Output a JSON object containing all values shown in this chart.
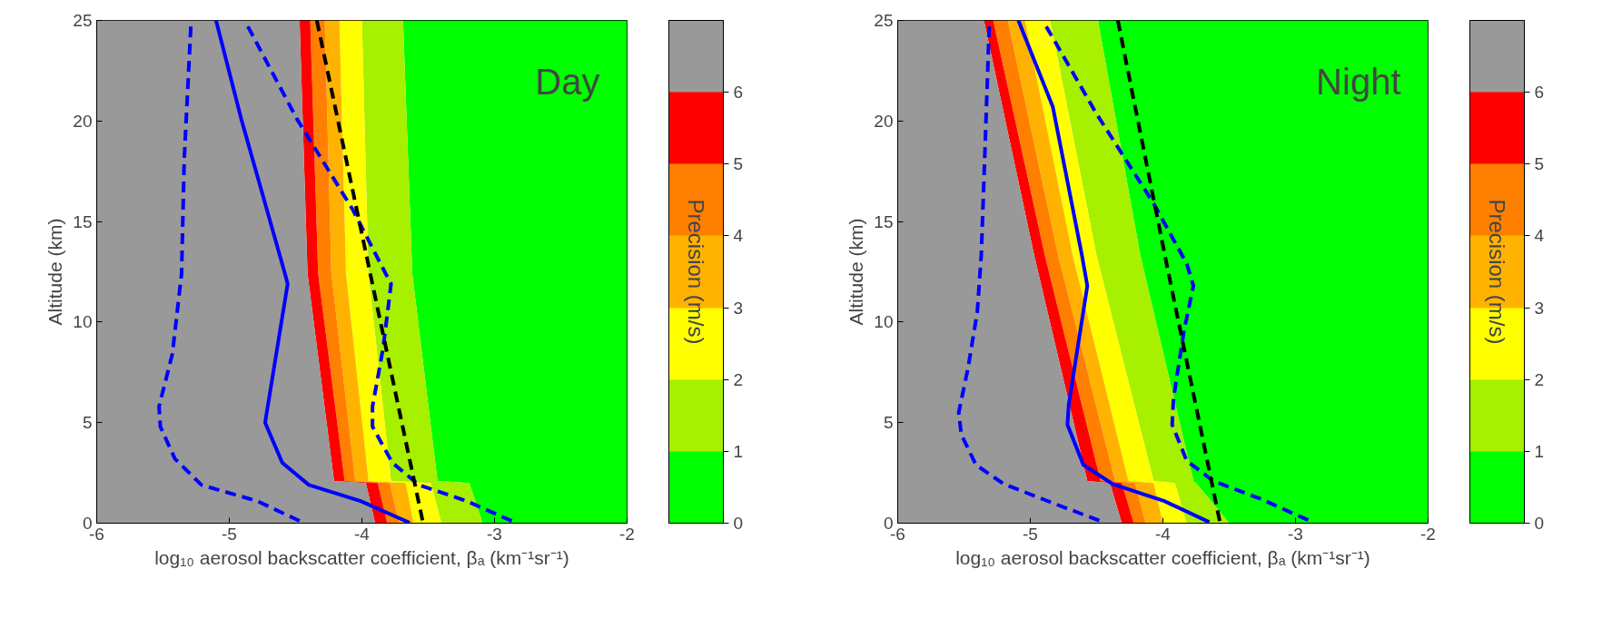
{
  "chart_data": [
    {
      "type": "line",
      "xlabel": "log₁₀ aerosol backscatter coefficient, βₐ (km⁻¹sr⁻¹)",
      "ylabel": "Altitude (km)",
      "annotations": [
        "Day"
      ],
      "clabel": "Precision (m/s)",
      "clim": [
        0,
        7
      ],
      "cticks": [
        0,
        1,
        2,
        3,
        4,
        5,
        6
      ],
      "xlim": [
        -6,
        -2
      ],
      "ylim": [
        0,
        25
      ],
      "xticks": [
        -6,
        -5,
        -4,
        -3,
        -2
      ],
      "yticks": [
        0,
        5,
        10,
        15,
        20,
        25
      ],
      "grid": false,
      "series": [
        {
          "type": "area",
          "color": "#00ff00",
          "x": [
            -3.69,
            -3.62,
            -3.43,
            -3.19,
            -3.09,
            -2,
            -2
          ],
          "values": [
            25,
            12.4,
            2.1,
            2.0,
            0,
            0,
            25
          ]
        },
        {
          "type": "area",
          "color": "#a6f000",
          "x": [
            -4.0,
            -3.95,
            -3.78,
            -3.48,
            -3.4,
            -3.09,
            -3.19,
            -3.43,
            -3.62,
            -3.69
          ],
          "values": [
            25,
            12.4,
            2.1,
            2.0,
            0,
            0,
            2.0,
            2.1,
            12.4,
            25
          ]
        },
        {
          "type": "area",
          "color": "#ffff00",
          "x": [
            -4.17,
            -4.12,
            -3.95,
            -3.67,
            -3.61,
            -3.4,
            -3.48,
            -3.78,
            -3.95,
            -4.0
          ],
          "values": [
            25,
            12.4,
            2.1,
            2.0,
            0,
            0,
            2.0,
            2.1,
            12.4,
            25
          ]
        },
        {
          "type": "area",
          "color": "#ffb300",
          "x": [
            -4.28,
            -4.23,
            -4.05,
            -3.79,
            -3.72,
            -3.61,
            -3.67,
            -3.95,
            -4.12,
            -4.17
          ],
          "values": [
            25,
            12.4,
            2.1,
            2.0,
            0,
            0,
            2.0,
            2.1,
            12.4,
            25
          ]
        },
        {
          "type": "area",
          "color": "#ff8000",
          "x": [
            -4.39,
            -4.33,
            -4.13,
            -3.88,
            -3.81,
            -3.72,
            -3.79,
            -4.05,
            -4.23,
            -4.28
          ],
          "values": [
            25,
            12.4,
            2.1,
            2.0,
            0,
            0,
            2.0,
            2.1,
            12.4,
            25
          ]
        },
        {
          "type": "area",
          "color": "#ff0000",
          "x": [
            -4.47,
            -4.41,
            -4.21,
            -3.97,
            -3.9,
            -3.81,
            -3.88,
            -4.13,
            -4.33,
            -4.39
          ],
          "values": [
            25,
            12.4,
            2.1,
            2.0,
            0,
            0,
            2.0,
            2.1,
            12.4,
            25
          ]
        },
        {
          "type": "area",
          "color": "#999999",
          "x": [
            -6,
            -4.47,
            -4.41,
            -4.21,
            -3.97,
            -3.9,
            -6
          ],
          "values": [
            25,
            25,
            12.4,
            2.1,
            2.0,
            0,
            0
          ]
        },
        {
          "color": "#0000ff",
          "line_style": "dashed",
          "x": [
            -5.29,
            -5.34,
            -5.36,
            -5.43,
            -5.53,
            -5.52,
            -5.41,
            -5.21,
            -4.79,
            -4.45
          ],
          "values": [
            24.7,
            18.1,
            12.4,
            8.4,
            5.8,
            4.8,
            3.2,
            1.9,
            1.1,
            0.05
          ]
        },
        {
          "color": "#0000ff",
          "line_style": "solid",
          "x": [
            -5.1,
            -4.91,
            -4.58,
            -4.56,
            -4.73,
            -4.6,
            -4.4,
            -4.01,
            -3.64
          ],
          "values": [
            25,
            20.1,
            12.4,
            11.9,
            5.0,
            3.0,
            1.9,
            1.1,
            0.02
          ]
        },
        {
          "color": "#0000ff",
          "line_style": "dashed",
          "x": [
            -4.86,
            -4.49,
            -4.07,
            -3.82,
            -3.78,
            -3.84,
            -3.92,
            -3.92,
            -3.77,
            -3.57,
            -3.21,
            -2.85
          ],
          "values": [
            24.7,
            20.1,
            15.6,
            12.4,
            11.9,
            8.7,
            5.8,
            4.8,
            3.0,
            1.9,
            1.1,
            0.05
          ]
        },
        {
          "color": "#000000",
          "line_style": "dashed",
          "x": [
            -4.34,
            -3.94,
            -3.54
          ],
          "values": [
            25,
            12.5,
            0.05
          ]
        }
      ]
    },
    {
      "type": "line",
      "xlabel": "log₁₀ aerosol backscatter coefficient, βₐ (km⁻¹sr⁻¹)",
      "ylabel": "Altitude (km)",
      "annotations": [
        "Night"
      ],
      "clabel": "Precision (m/s)",
      "clim": [
        0,
        7
      ],
      "cticks": [
        0,
        1,
        2,
        3,
        4,
        5,
        6
      ],
      "xlim": [
        -6,
        -2
      ],
      "ylim": [
        0,
        25
      ],
      "xticks": [
        -6,
        -5,
        -4,
        -3,
        -2
      ],
      "yticks": [
        0,
        5,
        10,
        15,
        20,
        25
      ],
      "grid": false,
      "series": [
        {
          "type": "area",
          "color": "#00ff00",
          "x": [
            -4.49,
            -4.17,
            -3.77,
            -3.75,
            -3.5,
            -2,
            -2
          ],
          "values": [
            25,
            13.3,
            2.1,
            2.0,
            0,
            0,
            25
          ]
        },
        {
          "type": "area",
          "color": "#a6f000",
          "x": [
            -4.85,
            -4.5,
            -4.07,
            -3.91,
            -3.82,
            -3.5,
            -3.75,
            -3.77,
            -4.17,
            -4.49
          ],
          "values": [
            25,
            13.3,
            2.1,
            2.0,
            0,
            0,
            2.0,
            2.1,
            13.3,
            25
          ]
        },
        {
          "type": "area",
          "color": "#ffff00",
          "x": [
            -5.04,
            -4.68,
            -4.26,
            -4.07,
            -4.0,
            -3.82,
            -3.91,
            -4.07,
            -4.5,
            -4.85
          ],
          "values": [
            25,
            13.3,
            2.1,
            2.0,
            0,
            0,
            2.0,
            2.1,
            13.3,
            25
          ]
        },
        {
          "type": "area",
          "color": "#ffb300",
          "x": [
            -5.17,
            -4.79,
            -4.36,
            -4.21,
            -4.13,
            -4.0,
            -4.07,
            -4.26,
            -4.68,
            -5.04
          ],
          "values": [
            25,
            13.3,
            2.1,
            2.0,
            0,
            0,
            2.0,
            2.1,
            13.3,
            25
          ]
        },
        {
          "type": "area",
          "color": "#ff8000",
          "x": [
            -5.28,
            -4.89,
            -4.47,
            -4.31,
            -4.22,
            -4.13,
            -4.21,
            -4.36,
            -4.79,
            -5.17
          ],
          "values": [
            25,
            13.3,
            2.1,
            2.0,
            0,
            0,
            2.0,
            2.1,
            13.3,
            25
          ]
        },
        {
          "type": "area",
          "color": "#ff0000",
          "x": [
            -5.35,
            -4.97,
            -4.57,
            -4.4,
            -4.31,
            -4.22,
            -4.31,
            -4.47,
            -4.89,
            -5.28
          ],
          "values": [
            25,
            13.3,
            2.1,
            2.0,
            0,
            0,
            2.0,
            2.1,
            13.3,
            25
          ]
        },
        {
          "type": "area",
          "color": "#999999",
          "x": [
            -6,
            -5.35,
            -4.97,
            -4.57,
            -4.4,
            -4.31,
            -6
          ],
          "values": [
            25,
            25,
            13.3,
            2.1,
            2.0,
            0,
            0
          ]
        },
        {
          "color": "#0000ff",
          "line_style": "dashed",
          "x": [
            -5.31,
            -5.34,
            -5.37,
            -5.4,
            -5.47,
            -5.54,
            -5.52,
            -5.41,
            -5.2,
            -4.83,
            -4.45
          ],
          "values": [
            24.7,
            18.9,
            13.3,
            10.5,
            7.7,
            5.5,
            4.4,
            2.9,
            1.95,
            1.0,
            0.05
          ]
        },
        {
          "color": "#0000ff",
          "line_style": "solid",
          "x": [
            -5.09,
            -4.83,
            -4.61,
            -4.57,
            -4.71,
            -4.72,
            -4.6,
            -4.38,
            -3.99,
            -3.65
          ],
          "values": [
            25,
            20.7,
            13.3,
            11.8,
            5.9,
            4.9,
            2.9,
            1.95,
            1.1,
            0.05
          ]
        },
        {
          "color": "#0000ff",
          "line_style": "dashed",
          "x": [
            -4.88,
            -4.5,
            -4.07,
            -3.82,
            -3.77,
            -3.84,
            -3.92,
            -3.93,
            -3.82,
            -3.62,
            -3.26,
            -2.87
          ],
          "values": [
            24.7,
            20.35,
            15.9,
            12.9,
            11.8,
            9.6,
            6.2,
            4.9,
            3.1,
            2.1,
            1.2,
            0.05
          ]
        },
        {
          "color": "#000000",
          "line_style": "dashed",
          "x": [
            -4.34,
            -3.96,
            -3.57
          ],
          "values": [
            25,
            12.5,
            0.05
          ]
        }
      ]
    }
  ]
}
